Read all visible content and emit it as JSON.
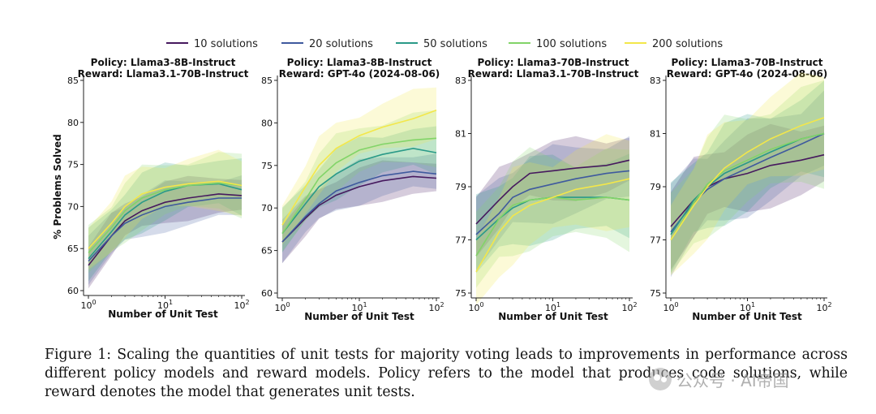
{
  "legend": {
    "items": [
      {
        "label": "10 solutions",
        "color": "#46195e"
      },
      {
        "label": "20 solutions",
        "color": "#3f5a9e"
      },
      {
        "label": "50 solutions",
        "color": "#2a9a88"
      },
      {
        "label": "100 solutions",
        "color": "#82d468"
      },
      {
        "label": "200 solutions",
        "color": "#f3e74a"
      }
    ]
  },
  "chart_data": [
    {
      "type": "line",
      "title": [
        "Policy: Llama3-8B-Instruct",
        "Reward: Llama3.1-70B-Instruct"
      ],
      "xlabel": "Number of Unit Test",
      "ylabel": "% Problems Solved",
      "xscale": "log",
      "xlim": [
        1,
        100
      ],
      "xticks": [
        {
          "base": "10",
          "exp": "0"
        },
        {
          "base": "10",
          "exp": "1"
        },
        {
          "base": "10",
          "exp": "2"
        }
      ],
      "ylim": [
        60,
        85
      ],
      "yticks": [
        "60",
        "65",
        "70",
        "75",
        "80",
        "85"
      ],
      "x": [
        1,
        2,
        3,
        5,
        10,
        20,
        50,
        100
      ],
      "series": [
        {
          "name": "10 solutions",
          "values": [
            63.0,
            66.5,
            68.3,
            69.5,
            70.5,
            71.0,
            71.5,
            71.3
          ],
          "band": 2.2
        },
        {
          "name": "20 solutions",
          "values": [
            63.5,
            66.5,
            68.0,
            69.0,
            70.0,
            70.5,
            71.0,
            71.0
          ],
          "band": 2.5
        },
        {
          "name": "50 solutions",
          "values": [
            63.8,
            67.0,
            69.0,
            70.5,
            71.8,
            72.5,
            72.7,
            72.0
          ],
          "band": 3.0
        },
        {
          "name": "100 solutions",
          "values": [
            64.5,
            67.5,
            69.5,
            71.0,
            72.0,
            72.5,
            72.8,
            72.5
          ],
          "band": 3.2
        },
        {
          "name": "200 solutions",
          "values": [
            65.0,
            68.0,
            70.0,
            71.5,
            72.3,
            72.7,
            73.0,
            72.5
          ],
          "band": 3.0
        }
      ]
    },
    {
      "type": "line",
      "title": [
        "Policy: Llama3-8B-Instruct",
        "Reward: GPT-4o (2024-08-06)"
      ],
      "xlabel": "Number of Unit Test",
      "ylabel": "",
      "xscale": "log",
      "xlim": [
        1,
        100
      ],
      "xticks": [
        {
          "base": "10",
          "exp": "0"
        },
        {
          "base": "10",
          "exp": "1"
        },
        {
          "base": "10",
          "exp": "2"
        }
      ],
      "ylim": [
        60,
        85
      ],
      "yticks": [
        "60",
        "65",
        "70",
        "75",
        "80",
        "85"
      ],
      "x": [
        1,
        2,
        3,
        5,
        10,
        20,
        50,
        100
      ],
      "series": [
        {
          "name": "10 solutions",
          "values": [
            66.0,
            68.8,
            70.3,
            71.5,
            72.5,
            73.2,
            73.7,
            73.5
          ],
          "band": 2.0
        },
        {
          "name": "20 solutions",
          "values": [
            66.0,
            69.0,
            70.5,
            72.0,
            73.0,
            73.8,
            74.3,
            74.0
          ],
          "band": 2.2
        },
        {
          "name": "50 solutions",
          "values": [
            67.0,
            70.5,
            72.5,
            74.0,
            75.5,
            76.3,
            77.0,
            76.5
          ],
          "band": 2.5
        },
        {
          "name": "100 solutions",
          "values": [
            67.0,
            71.0,
            73.5,
            75.3,
            76.8,
            77.5,
            78.0,
            78.2
          ],
          "band": 2.8
        },
        {
          "name": "200 solutions",
          "values": [
            68.0,
            72.5,
            75.0,
            77.0,
            78.5,
            79.5,
            80.5,
            81.5
          ],
          "band": 2.8
        }
      ]
    },
    {
      "type": "line",
      "title": [
        "Policy: Llama3-70B-Instruct",
        "Reward: Llama3.1-70B-Instruct"
      ],
      "xlabel": "Number of Unit Test",
      "ylabel": "",
      "xscale": "log",
      "xlim": [
        1,
        100
      ],
      "xticks": [
        {
          "base": "10",
          "exp": "0"
        },
        {
          "base": "10",
          "exp": "1"
        },
        {
          "base": "10",
          "exp": "2"
        }
      ],
      "ylim": [
        75,
        83
      ],
      "yticks": [
        "75",
        "77",
        "79",
        "81",
        "83"
      ],
      "x": [
        1,
        2,
        3,
        5,
        10,
        20,
        50,
        100
      ],
      "series": [
        {
          "name": "10 solutions",
          "values": [
            77.6,
            78.5,
            79.0,
            79.5,
            79.6,
            79.7,
            79.8,
            80.0
          ],
          "band": 1.0
        },
        {
          "name": "20 solutions",
          "values": [
            77.2,
            78.0,
            78.6,
            78.9,
            79.1,
            79.3,
            79.5,
            79.6
          ],
          "band": 1.2
        },
        {
          "name": "50 solutions",
          "values": [
            77.0,
            77.8,
            78.2,
            78.5,
            78.6,
            78.6,
            78.6,
            78.5
          ],
          "band": 1.4
        },
        {
          "name": "100 solutions",
          "values": [
            76.4,
            77.8,
            78.3,
            78.5,
            78.6,
            78.5,
            78.6,
            78.5
          ],
          "band": 1.6
        },
        {
          "name": "200 solutions",
          "values": [
            75.8,
            77.3,
            77.9,
            78.3,
            78.6,
            78.9,
            79.1,
            79.3
          ],
          "band": 1.5
        }
      ]
    },
    {
      "type": "line",
      "title": [
        "Policy: Llama3-70B-Instruct",
        "Reward: GPT-4o (2024-08-06)"
      ],
      "xlabel": "Number of Unit Test",
      "ylabel": "",
      "xscale": "log",
      "xlim": [
        1,
        100
      ],
      "xticks": [
        {
          "base": "10",
          "exp": "0"
        },
        {
          "base": "10",
          "exp": "1"
        },
        {
          "base": "10",
          "exp": "2"
        }
      ],
      "ylim": [
        75,
        83
      ],
      "yticks": [
        "75",
        "77",
        "79",
        "81",
        "83"
      ],
      "x": [
        1,
        2,
        3,
        5,
        10,
        20,
        50,
        100
      ],
      "series": [
        {
          "name": "10 solutions",
          "values": [
            77.5,
            78.5,
            79.0,
            79.3,
            79.5,
            79.8,
            80.0,
            80.2
          ],
          "band": 1.3
        },
        {
          "name": "20 solutions",
          "values": [
            77.3,
            78.4,
            78.9,
            79.3,
            79.7,
            80.1,
            80.6,
            81.0
          ],
          "band": 1.5
        },
        {
          "name": "50 solutions",
          "values": [
            77.2,
            78.5,
            79.0,
            79.5,
            79.9,
            80.3,
            80.8,
            81.0
          ],
          "band": 1.6
        },
        {
          "name": "100 solutions",
          "values": [
            77.0,
            78.4,
            79.1,
            79.6,
            80.0,
            80.4,
            80.8,
            81.0
          ],
          "band": 1.7
        },
        {
          "name": "200 solutions",
          "values": [
            77.0,
            78.3,
            79.0,
            79.7,
            80.3,
            80.8,
            81.3,
            81.6
          ],
          "band": 1.6
        }
      ]
    }
  ],
  "caption": {
    "text": "Figure 1: Scaling the quantities of unit tests for majority voting leads to improvements in performance across different policy models and reward models. Policy refers to the model that produces code solutions, while reward denotes the model that generates unit tests."
  },
  "watermark": {
    "text": "公众号 · AI帝国"
  }
}
